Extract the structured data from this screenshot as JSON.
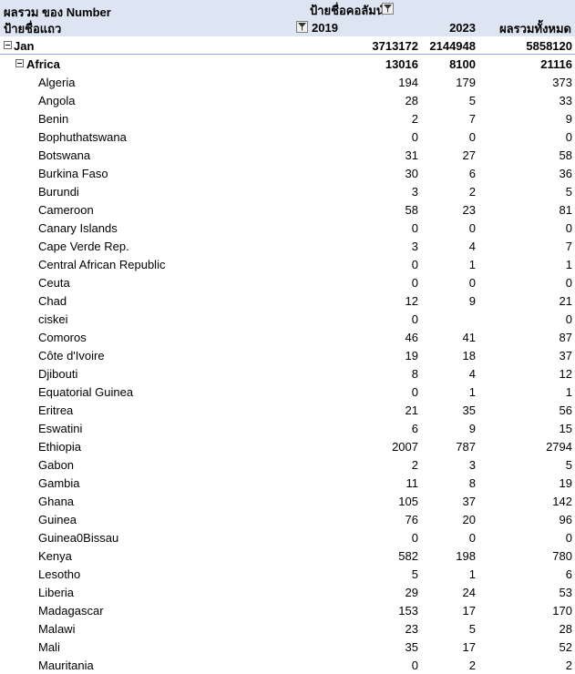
{
  "header": {
    "title": "ผลรวม ของ  Number",
    "column_labels": "ป้ายชื่อคอลัมน์",
    "row_labels": "ป้ายชื่อแถว",
    "col_2019": "2019",
    "col_2023": "2023",
    "col_total": "ผลรวมทั้งหมด"
  },
  "groups": [
    {
      "label": "Jan",
      "v2019": "3713172",
      "v2023": "2144948",
      "total": "5858120"
    },
    {
      "label": "Africa",
      "v2019": "13016",
      "v2023": "8100",
      "total": "21116"
    }
  ],
  "rows": [
    {
      "label": "Algeria",
      "v2019": "194",
      "v2023": "179",
      "total": "373"
    },
    {
      "label": "Angola",
      "v2019": "28",
      "v2023": "5",
      "total": "33"
    },
    {
      "label": "Benin",
      "v2019": "2",
      "v2023": "7",
      "total": "9"
    },
    {
      "label": "Bophuthatswana",
      "v2019": "0",
      "v2023": "0",
      "total": "0"
    },
    {
      "label": "Botswana",
      "v2019": "31",
      "v2023": "27",
      "total": "58"
    },
    {
      "label": "Burkina  Faso",
      "v2019": "30",
      "v2023": "6",
      "total": "36"
    },
    {
      "label": "Burundi",
      "v2019": "3",
      "v2023": "2",
      "total": "5"
    },
    {
      "label": "Cameroon",
      "v2019": "58",
      "v2023": "23",
      "total": "81"
    },
    {
      "label": "Canary  Islands",
      "v2019": "0",
      "v2023": "0",
      "total": "0"
    },
    {
      "label": "Cape Verde Rep.",
      "v2019": "3",
      "v2023": "4",
      "total": "7"
    },
    {
      "label": "Central African Republic",
      "v2019": "0",
      "v2023": "1",
      "total": "1"
    },
    {
      "label": "Ceuta",
      "v2019": "0",
      "v2023": "0",
      "total": "0"
    },
    {
      "label": "Chad",
      "v2019": "12",
      "v2023": "9",
      "total": "21"
    },
    {
      "label": "ciskei",
      "v2019": "0",
      "v2023": "",
      "total": "0"
    },
    {
      "label": "Comoros",
      "v2019": "46",
      "v2023": "41",
      "total": "87"
    },
    {
      "label": "Côte d'Ivoire",
      "v2019": "19",
      "v2023": "18",
      "total": "37"
    },
    {
      "label": "Djibouti",
      "v2019": "8",
      "v2023": "4",
      "total": "12"
    },
    {
      "label": "Equatorial  Guinea",
      "v2019": "0",
      "v2023": "1",
      "total": "1"
    },
    {
      "label": "Eritrea",
      "v2019": "21",
      "v2023": "35",
      "total": "56"
    },
    {
      "label": "Eswatini",
      "v2019": "6",
      "v2023": "9",
      "total": "15"
    },
    {
      "label": "Ethiopia",
      "v2019": "2007",
      "v2023": "787",
      "total": "2794"
    },
    {
      "label": "Gabon",
      "v2019": "2",
      "v2023": "3",
      "total": "5"
    },
    {
      "label": "Gambia",
      "v2019": "11",
      "v2023": "8",
      "total": "19"
    },
    {
      "label": "Ghana",
      "v2019": "105",
      "v2023": "37",
      "total": "142"
    },
    {
      "label": "Guinea",
      "v2019": "76",
      "v2023": "20",
      "total": "96"
    },
    {
      "label": "Guinea0Bissau",
      "v2019": "0",
      "v2023": "0",
      "total": "0"
    },
    {
      "label": "Kenya",
      "v2019": "582",
      "v2023": "198",
      "total": "780"
    },
    {
      "label": "Lesotho",
      "v2019": "5",
      "v2023": "1",
      "total": "6"
    },
    {
      "label": "Liberia",
      "v2019": "29",
      "v2023": "24",
      "total": "53"
    },
    {
      "label": "Madagascar",
      "v2019": "153",
      "v2023": "17",
      "total": "170"
    },
    {
      "label": "Malawi",
      "v2019": "23",
      "v2023": "5",
      "total": "28"
    },
    {
      "label": "Mali",
      "v2019": "35",
      "v2023": "17",
      "total": "52"
    },
    {
      "label": "Mauritania",
      "v2019": "0",
      "v2023": "2",
      "total": "2"
    }
  ]
}
